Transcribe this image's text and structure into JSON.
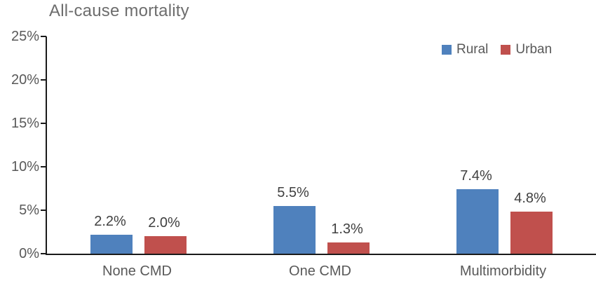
{
  "title": "All-cause mortality",
  "chart_data": {
    "type": "bar",
    "title": "All-cause mortality",
    "categories": [
      "None CMD",
      "One CMD",
      "Multimorbidity"
    ],
    "series": [
      {
        "name": "Rural",
        "color": "#4F81BD",
        "values": [
          2.2,
          5.5,
          7.4
        ],
        "labels": [
          "2.2%",
          "5.5%",
          "7.4%"
        ]
      },
      {
        "name": "Urban",
        "color": "#C0504D",
        "values": [
          2.0,
          1.3,
          4.8
        ],
        "labels": [
          "2.0%",
          "1.3%",
          "4.8%"
        ]
      }
    ],
    "ylim": [
      0,
      25
    ],
    "yticks": [
      0,
      5,
      10,
      15,
      20,
      25
    ],
    "ytick_labels": [
      "0%",
      "5%",
      "10%",
      "15%",
      "20%",
      "25%"
    ],
    "grid": false,
    "legend_position": "top-right",
    "colors": {
      "axis": "#1a1a1a",
      "text": "#595959",
      "value_label": "#404040"
    }
  }
}
